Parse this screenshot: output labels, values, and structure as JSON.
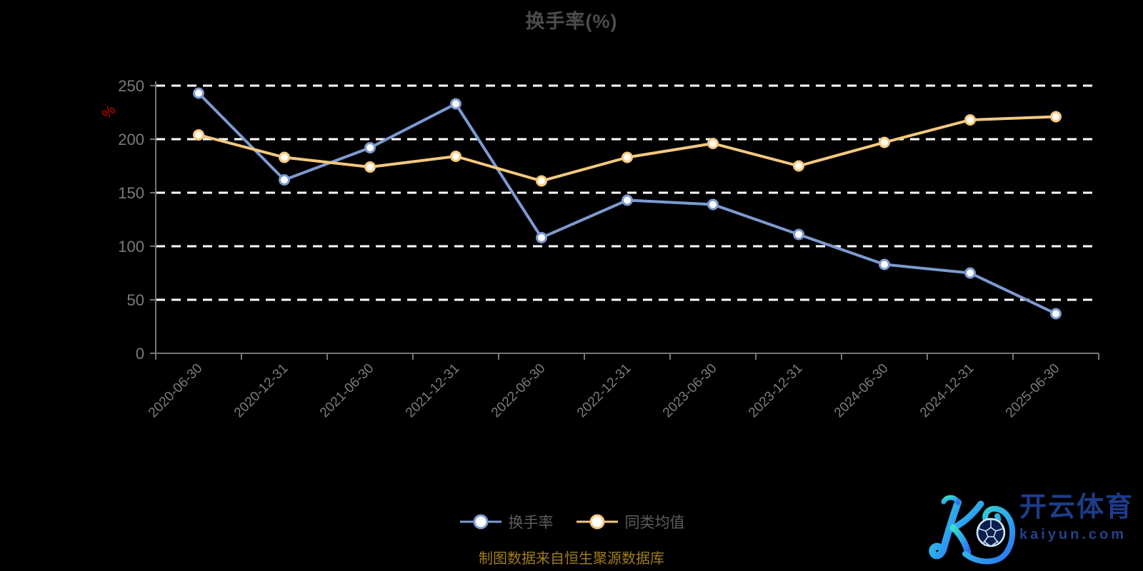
{
  "chart": {
    "title": "换手率(%)",
    "y_unit": "%"
  },
  "chart_data": {
    "type": "line",
    "title": "换手率(%)",
    "xlabel": "",
    "ylabel": "%",
    "categories": [
      "2020-06-30",
      "2020-12-31",
      "2021-06-30",
      "2021-12-31",
      "2022-06-30",
      "2022-12-31",
      "2023-06-30",
      "2023-12-31",
      "2024-06-30",
      "2024-12-31",
      "2025-06-30"
    ],
    "series": [
      {
        "name": "换手率",
        "color": "#7d9ad0",
        "marker_fill": "#ffffff",
        "values": [
          243,
          162,
          192,
          233,
          108,
          143,
          139,
          111,
          83,
          75,
          37
        ]
      },
      {
        "name": "同类均值",
        "color": "#f3c87f",
        "marker_fill": "#fffdf4",
        "values": [
          204,
          183,
          174,
          184,
          161,
          183,
          196,
          175,
          197,
          218,
          221
        ]
      }
    ],
    "ylim": [
      0,
      250
    ],
    "ytick_interval": 50,
    "grid": "horizontal-white-dashed",
    "legend_position": "bottom-center"
  },
  "axis": {
    "label_color": "#7b7b7b",
    "axis_color": "#757575",
    "grid_color": "#ffffff",
    "unit_color": "#d20000"
  },
  "footer": {
    "source_text": "制图数据来自恒生聚源数据库"
  },
  "logo": {
    "brand_text": "开云体育",
    "domain_text": "kaiyun.com",
    "gradient_start": "#38e1c4",
    "gradient_end": "#2e6ef0",
    "ball_color": "#0a1f4d"
  }
}
